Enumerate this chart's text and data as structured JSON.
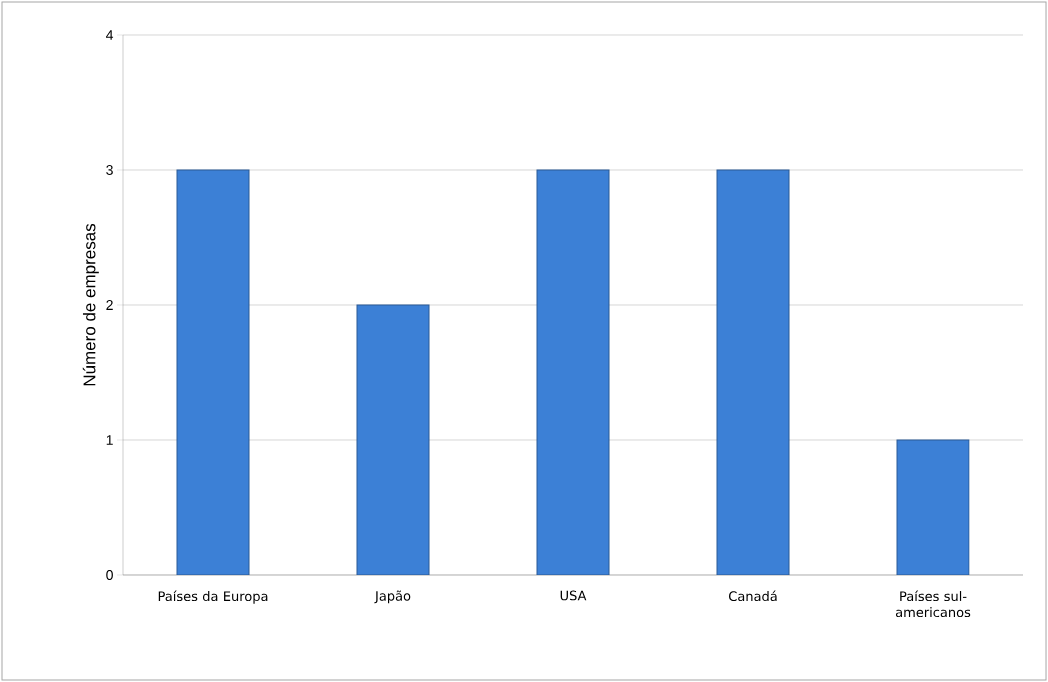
{
  "chart_data": {
    "type": "bar",
    "ylabel": "Número de empresas",
    "categories": [
      "Países da Europa",
      "Japão",
      "USA",
      "Canadá",
      "Países sul-americanos"
    ],
    "values": [
      3,
      2,
      3,
      3,
      1
    ],
    "color": "#3c80d6",
    "ylim": [
      0,
      4
    ],
    "yticks": [
      0,
      1,
      2,
      3,
      4
    ],
    "grid": "y"
  }
}
